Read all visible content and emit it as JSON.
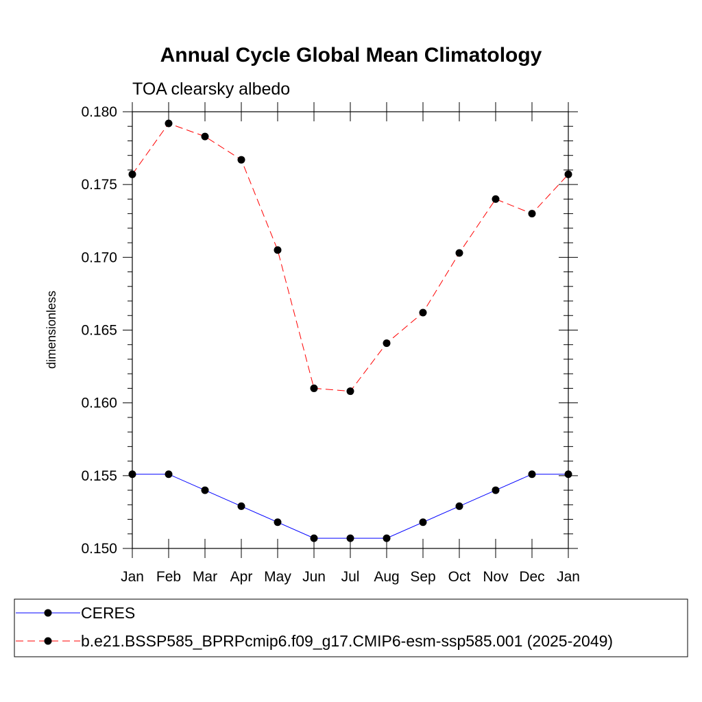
{
  "chart_data": {
    "type": "line",
    "title": "Annual Cycle Global Mean Climatology",
    "subtitle": "TOA clearsky albedo",
    "xlabel": "",
    "ylabel": "dimensionless",
    "categories": [
      "Jan",
      "Feb",
      "Mar",
      "Apr",
      "May",
      "Jun",
      "Jul",
      "Aug",
      "Sep",
      "Oct",
      "Nov",
      "Dec",
      "Jan"
    ],
    "ylim": [
      0.15,
      0.18
    ],
    "yticks": [
      "0.150",
      "0.155",
      "0.160",
      "0.165",
      "0.170",
      "0.175",
      "0.180"
    ],
    "ytick_values": [
      0.15,
      0.155,
      0.16,
      0.165,
      0.17,
      0.175,
      0.18
    ],
    "series": [
      {
        "name": "CERES",
        "color": "#0000ff",
        "dash": "solid",
        "values": [
          0.1551,
          0.1551,
          0.154,
          0.1529,
          0.1518,
          0.1507,
          0.1507,
          0.1507,
          0.1518,
          0.1529,
          0.154,
          0.1551,
          0.1551
        ]
      },
      {
        "name": "b.e21.BSSP585_BPRPcmip6.f09_g17.CMIP6-esm-ssp585.001 (2025-2049)",
        "color": "#ff0000",
        "dash": "dashed",
        "values": [
          0.1757,
          0.1792,
          0.1783,
          0.1767,
          0.1705,
          0.161,
          0.1608,
          0.1641,
          0.1662,
          0.1703,
          0.174,
          0.173,
          0.1757
        ]
      }
    ],
    "legend_position": "bottom",
    "grid": false
  }
}
